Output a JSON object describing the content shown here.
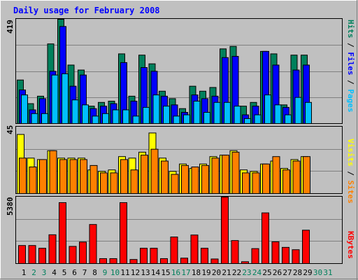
{
  "chart_data": {
    "type": "bar",
    "title": "Daily usage for February 2008",
    "days": [
      "1",
      "2",
      "3",
      "4",
      "5",
      "6",
      "7",
      "8",
      "9",
      "10",
      "11",
      "12",
      "13",
      "14",
      "15",
      "16",
      "17",
      "18",
      "19",
      "20",
      "21",
      "22",
      "23",
      "24",
      "25",
      "26",
      "27",
      "28",
      "29",
      "30",
      "31"
    ],
    "weekend_days": [
      2,
      3,
      9,
      10,
      16,
      17,
      23,
      24,
      30,
      31
    ],
    "panels": [
      {
        "name": "traffic",
        "max_label": "419",
        "ymax": 419,
        "legend": [
          "Pages",
          "Files",
          "Hits"
        ],
        "series": [
          {
            "name": "Hits",
            "color": "#00805c",
            "values": [
              175,
              80,
              110,
              320,
              419,
              235,
              215,
              70,
              85,
              90,
              280,
              110,
              275,
              240,
              130,
              100,
              60,
              150,
              130,
              145,
              300,
              310,
              70,
              85,
              290,
              280,
              75,
              275,
              275,
              0,
              0
            ]
          },
          {
            "name": "Files",
            "color": "#0000ff",
            "values": [
              135,
              55,
              100,
              210,
              390,
              150,
              195,
              60,
              70,
              80,
              245,
              90,
              225,
              210,
              110,
              75,
              45,
              115,
              100,
              110,
              265,
              270,
              35,
              70,
              290,
              235,
              65,
              215,
              235,
              0,
              0
            ]
          },
          {
            "name": "Pages",
            "color": "#00bfff",
            "values": [
              115,
              40,
              40,
              195,
              200,
              95,
              75,
              30,
              40,
              55,
              55,
              30,
              65,
              115,
              70,
              30,
              35,
              90,
              45,
              85,
              85,
              70,
              20,
              35,
              115,
              75,
              35,
              105,
              85,
              0,
              0
            ]
          }
        ]
      },
      {
        "name": "visits",
        "max_label": "45",
        "ymax": 45,
        "legend": [
          "Sites",
          "Visits"
        ],
        "series": [
          {
            "name": "Visits",
            "color": "#ffff00",
            "values": [
              40,
              24,
              23,
              29,
              24,
              24,
              24,
              16,
              15,
              16,
              25,
              24,
              28,
              41,
              24,
              15,
              20,
              17,
              20,
              25,
              26,
              29,
              16,
              15,
              20,
              22,
              17,
              23,
              25,
              0,
              0
            ]
          },
          {
            "name": "Sites",
            "color": "#ff8000",
            "values": [
              24,
              18,
              23,
              29,
              23,
              23,
              23,
              19,
              14,
              14,
              23,
              16,
              26,
              30,
              22,
              13,
              19,
              18,
              19,
              24,
              26,
              28,
              14,
              14,
              20,
              25,
              16,
              22,
              25,
              0,
              0
            ]
          }
        ]
      },
      {
        "name": "kbytes",
        "max_label": "5380",
        "ymax": 5380,
        "legend": [
          "KBytes"
        ],
        "series": [
          {
            "name": "KBytes",
            "color": "#ff0000",
            "values": [
              1460,
              1460,
              1240,
              2330,
              4930,
              1390,
              1740,
              3160,
              400,
              400,
              4930,
              330,
              1240,
              1240,
              400,
              2150,
              440,
              2310,
              1240,
              370,
              5380,
              1860,
              150,
              1210,
              4100,
              1760,
              1310,
              1120,
              2700,
              0,
              0
            ]
          }
        ]
      }
    ]
  },
  "colors": {
    "background": "#c0c0c0",
    "title": "#0000ff",
    "weekday_label": "#000000",
    "weekend_label": "#00805c",
    "plot_border": "#000000",
    "gridline": "#808080"
  }
}
